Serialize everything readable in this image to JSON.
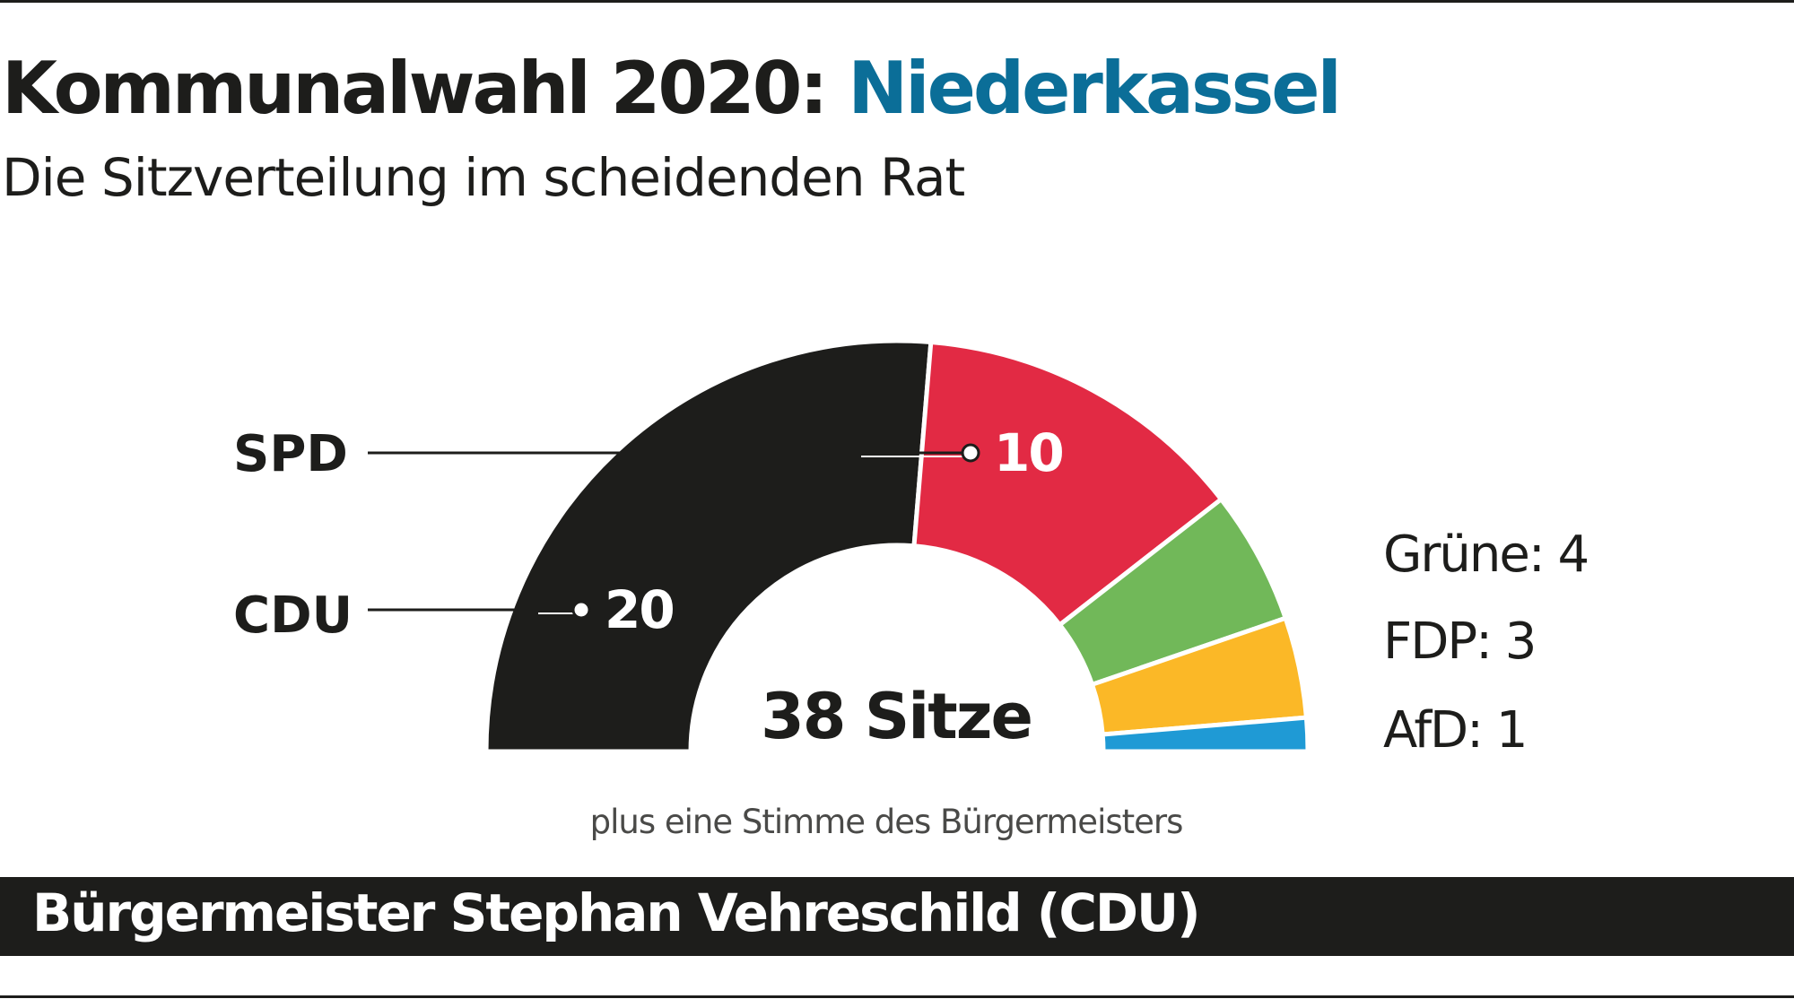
{
  "title": {
    "prefix": "Kommunalwahl 2020:",
    "highlight": "Niederkassel"
  },
  "subtitle": "Die Sitzverteilung im scheidenden Rat",
  "total_label": "38 Sitze",
  "note": "plus eine Stimme des Bürgermeisters",
  "footer": "Bürgermeister Stephan Vehreschild (CDU)",
  "colors": {
    "title_highlight": "#0b6e98",
    "CDU": "#1d1d1b",
    "SPD": "#e22a44",
    "Grüne": "#71b859",
    "FDP": "#fbb827",
    "AfD": "#1f9ad5"
  },
  "chart_data": {
    "type": "pie",
    "subtype": "semicircle-parliament",
    "total": 38,
    "categories": [
      "CDU",
      "SPD",
      "Grüne",
      "FDP",
      "AfD"
    ],
    "values": [
      20,
      10,
      4,
      3,
      1
    ],
    "labels": [
      {
        "party": "CDU",
        "name_text": "CDU",
        "value_text": "20"
      },
      {
        "party": "SPD",
        "name_text": "SPD",
        "value_text": "10"
      },
      {
        "party": "Grüne",
        "text": "Grüne: 4"
      },
      {
        "party": "FDP",
        "text": "FDP: 3"
      },
      {
        "party": "AfD",
        "text": "AfD: 1"
      }
    ]
  }
}
